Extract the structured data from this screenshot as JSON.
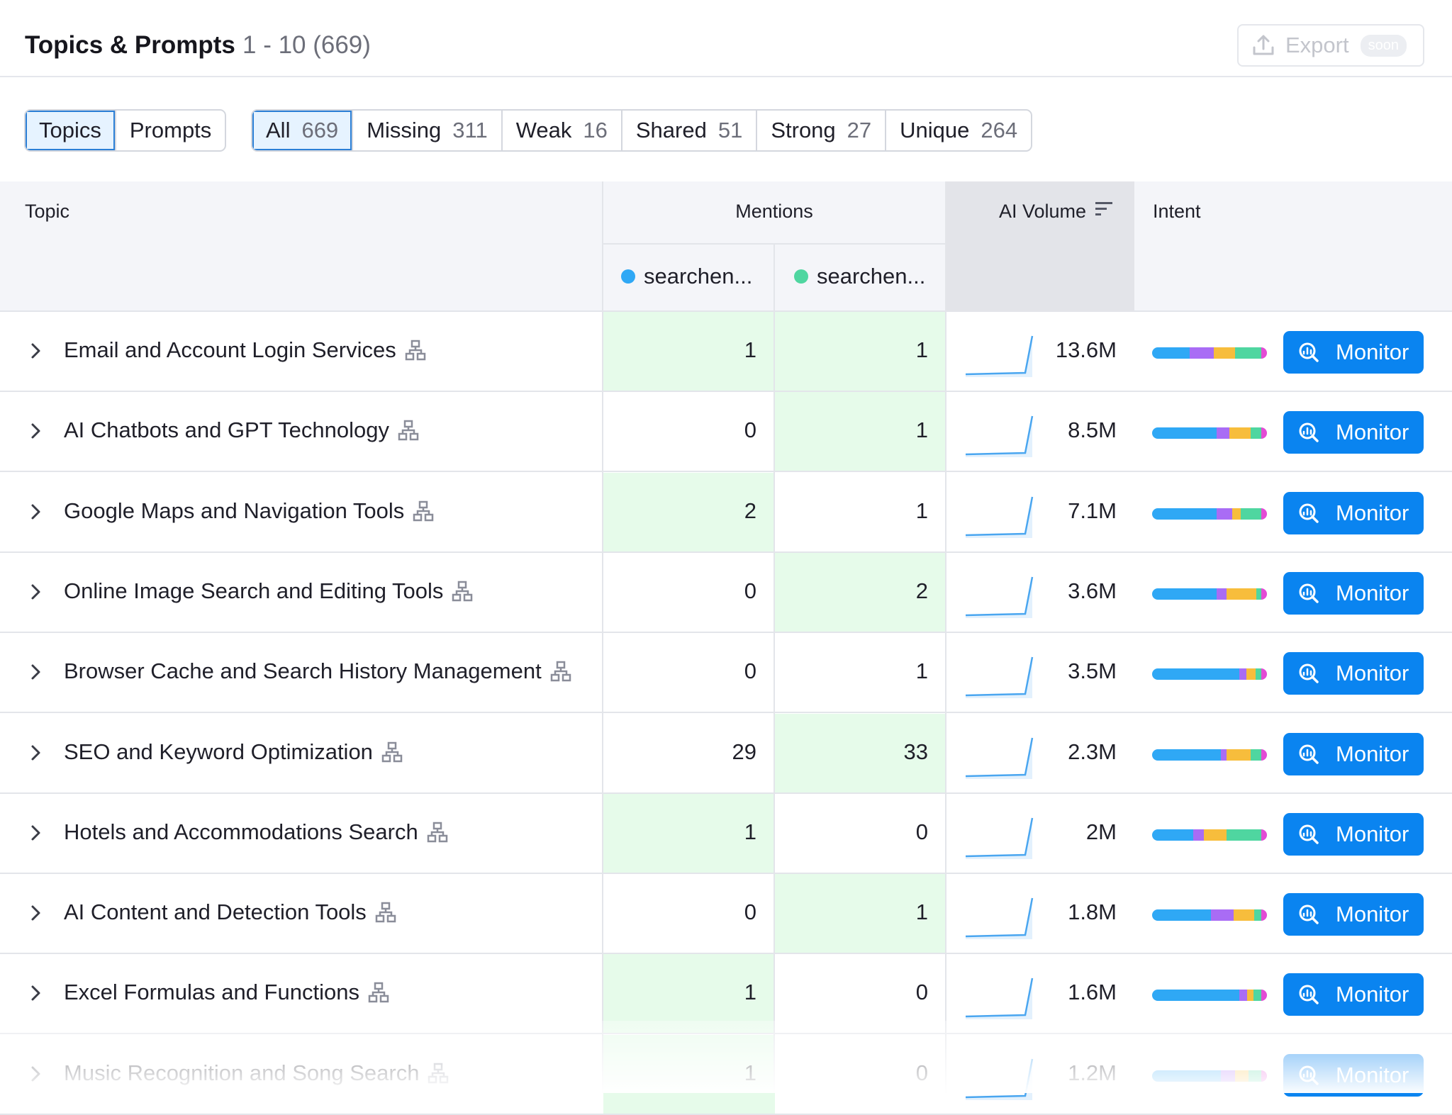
{
  "header": {
    "title": "Topics & Prompts",
    "range": "1 - 10 (669)",
    "export_label": "Export",
    "export_badge": "soon"
  },
  "view_tabs": [
    {
      "label": "Topics",
      "active": true
    },
    {
      "label": "Prompts",
      "active": false
    }
  ],
  "filter_tabs": [
    {
      "label": "All",
      "count": "669",
      "active": true
    },
    {
      "label": "Missing",
      "count": "311",
      "active": false
    },
    {
      "label": "Weak",
      "count": "16",
      "active": false
    },
    {
      "label": "Shared",
      "count": "51",
      "active": false
    },
    {
      "label": "Strong",
      "count": "27",
      "active": false
    },
    {
      "label": "Unique",
      "count": "264",
      "active": false
    }
  ],
  "table": {
    "headers": {
      "topic": "Topic",
      "mentions": "Mentions",
      "ai_volume": "AI Volume",
      "intent": "Intent"
    },
    "mention_columns": [
      {
        "label": "searchen...",
        "color": "#2fa8f5"
      },
      {
        "label": "searchen...",
        "color": "#4fd6a0"
      }
    ],
    "monitor_label": "Monitor",
    "rows": [
      {
        "topic": "Email and Account Login Services",
        "m1": "1",
        "m2": "1",
        "volume": "13.6M",
        "hl": [
          true,
          true
        ],
        "intent": [
          0.33,
          0.21,
          0.18,
          0.23,
          0.05
        ]
      },
      {
        "topic": "AI Chatbots and GPT Technology",
        "m1": "0",
        "m2": "1",
        "volume": "8.5M",
        "hl": [
          false,
          true
        ],
        "intent": [
          0.56,
          0.11,
          0.19,
          0.09,
          0.05
        ]
      },
      {
        "topic": "Google Maps and Navigation Tools",
        "m1": "2",
        "m2": "1",
        "volume": "7.1M",
        "hl": [
          true,
          false
        ],
        "intent": [
          0.56,
          0.14,
          0.07,
          0.18,
          0.05
        ]
      },
      {
        "topic": "Online Image Search and Editing Tools",
        "m1": "0",
        "m2": "2",
        "volume": "3.6M",
        "hl": [
          false,
          true
        ],
        "intent": [
          0.56,
          0.09,
          0.26,
          0.04,
          0.05
        ]
      },
      {
        "topic": "Browser Cache and Search History Management",
        "m1": "0",
        "m2": "1",
        "volume": "3.5M",
        "hl": [
          false,
          false
        ],
        "intent": [
          0.76,
          0.06,
          0.08,
          0.05,
          0.05
        ]
      },
      {
        "topic": "SEO and Keyword Optimization",
        "m1": "29",
        "m2": "33",
        "volume": "2.3M",
        "hl": [
          false,
          true
        ],
        "intent": [
          0.6,
          0.05,
          0.21,
          0.09,
          0.05
        ]
      },
      {
        "topic": "Hotels and Accommodations Search",
        "m1": "1",
        "m2": "0",
        "volume": "2M",
        "hl": [
          true,
          false
        ],
        "intent": [
          0.36,
          0.09,
          0.2,
          0.3,
          0.05
        ]
      },
      {
        "topic": "AI Content and Detection Tools",
        "m1": "0",
        "m2": "1",
        "volume": "1.8M",
        "hl": [
          false,
          true
        ],
        "intent": [
          0.51,
          0.2,
          0.18,
          0.06,
          0.05
        ]
      },
      {
        "topic": "Excel Formulas and Functions",
        "m1": "1",
        "m2": "0",
        "volume": "1.6M",
        "hl": [
          true,
          false
        ],
        "intent": [
          0.76,
          0.07,
          0.05,
          0.07,
          0.05
        ]
      },
      {
        "topic": "Music Recognition and Song Search",
        "m1": "1",
        "m2": "0",
        "volume": "1.2M",
        "hl": [
          true,
          false
        ],
        "intent": [
          0.6,
          0.12,
          0.12,
          0.11,
          0.05
        ]
      }
    ]
  },
  "intent_colors": [
    "#2fa8f5",
    "#a96cf5",
    "#f7bd3c",
    "#4fd6a0",
    "#e34bd5"
  ]
}
